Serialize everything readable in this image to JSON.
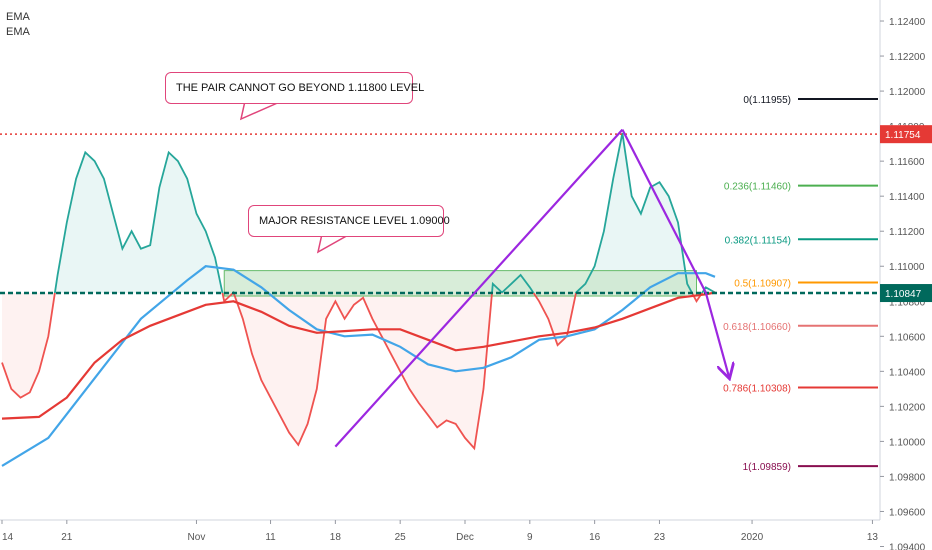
{
  "chart_data": {
    "type": "line",
    "title": "",
    "legend": [
      "EMA",
      "EMA"
    ],
    "x_ticks": [
      "14",
      "21",
      "Nov",
      "11",
      "18",
      "25",
      "Dec",
      "9",
      "16",
      "23",
      "2020",
      "13"
    ],
    "y_ticks": [
      "1.12400",
      "1.12200",
      "1.12000",
      "1.11800",
      "1.11600",
      "1.11400",
      "1.11200",
      "1.11000",
      "1.10800",
      "1.10600",
      "1.10400",
      "1.10200",
      "1.10000",
      "1.09800",
      "1.09600",
      "1.09400"
    ],
    "ylim": [
      1.0938,
      1.1252
    ],
    "baseline": 1.10847,
    "current_price_label": "1.10847",
    "resistance_level": 1.11754,
    "resistance_label": "1.11754",
    "resistance_zone": {
      "from": 1.1083,
      "to": 1.10975,
      "start_day": 24,
      "end_day": 75
    },
    "series": [
      {
        "key": "price",
        "color_up": "#26a69a",
        "color_down": "#ef5350",
        "points": [
          [
            0,
            1.1045
          ],
          [
            1,
            1.103
          ],
          [
            2,
            1.1025
          ],
          [
            3,
            1.1028
          ],
          [
            4,
            1.104
          ],
          [
            5,
            1.106
          ],
          [
            6,
            1.1095
          ],
          [
            7,
            1.1125
          ],
          [
            8,
            1.115
          ],
          [
            9,
            1.1165
          ],
          [
            10,
            1.116
          ],
          [
            11,
            1.115
          ],
          [
            12,
            1.113
          ],
          [
            13,
            1.111
          ],
          [
            14,
            1.112
          ],
          [
            15,
            1.111
          ],
          [
            16,
            1.1112
          ],
          [
            17,
            1.1145
          ],
          [
            18,
            1.1165
          ],
          [
            19,
            1.116
          ],
          [
            20,
            1.115
          ],
          [
            21,
            1.113
          ],
          [
            22,
            1.112
          ],
          [
            23,
            1.1105
          ],
          [
            24,
            1.108
          ],
          [
            25,
            1.1085
          ],
          [
            26,
            1.107
          ],
          [
            27,
            1.105
          ],
          [
            28,
            1.1035
          ],
          [
            29,
            1.1025
          ],
          [
            30,
            1.1015
          ],
          [
            31,
            1.1005
          ],
          [
            32,
            1.0998
          ],
          [
            33,
            1.101
          ],
          [
            34,
            1.103
          ],
          [
            35,
            1.107
          ],
          [
            36,
            1.108
          ],
          [
            37,
            1.107
          ],
          [
            38,
            1.1078
          ],
          [
            39,
            1.1082
          ],
          [
            40,
            1.107
          ],
          [
            41,
            1.106
          ],
          [
            42,
            1.105
          ],
          [
            43,
            1.104
          ],
          [
            44,
            1.103
          ],
          [
            45,
            1.1022
          ],
          [
            46,
            1.1015
          ],
          [
            47,
            1.1008
          ],
          [
            48,
            1.1012
          ],
          [
            49,
            1.101
          ],
          [
            50,
            1.1002
          ],
          [
            51,
            1.0996
          ],
          [
            52,
            1.103
          ],
          [
            53,
            1.109
          ],
          [
            54,
            1.1085
          ],
          [
            55,
            1.109
          ],
          [
            56,
            1.1095
          ],
          [
            57,
            1.1088
          ],
          [
            58,
            1.108
          ],
          [
            59,
            1.107
          ],
          [
            60,
            1.1055
          ],
          [
            61,
            1.106
          ],
          [
            62,
            1.1085
          ],
          [
            63,
            1.109
          ],
          [
            64,
            1.11
          ],
          [
            65,
            1.112
          ],
          [
            66,
            1.115
          ],
          [
            67,
            1.1176
          ],
          [
            68,
            1.114
          ],
          [
            69,
            1.113
          ],
          [
            70,
            1.1145
          ],
          [
            71,
            1.1148
          ],
          [
            72,
            1.114
          ],
          [
            73,
            1.1125
          ],
          [
            74,
            1.109
          ],
          [
            75,
            1.108
          ],
          [
            76,
            1.1088
          ],
          [
            77,
            1.1085
          ]
        ]
      },
      {
        "key": "ema_fast",
        "name": "EMA",
        "color": "#42a5e8",
        "points": [
          [
            0,
            1.0986
          ],
          [
            5,
            1.1002
          ],
          [
            10,
            1.1036
          ],
          [
            15,
            1.107
          ],
          [
            20,
            1.1092
          ],
          [
            22,
            1.11
          ],
          [
            25,
            1.1098
          ],
          [
            28,
            1.1088
          ],
          [
            31,
            1.1075
          ],
          [
            34,
            1.1064
          ],
          [
            37,
            1.106
          ],
          [
            40,
            1.1061
          ],
          [
            43,
            1.1054
          ],
          [
            46,
            1.1044
          ],
          [
            49,
            1.104
          ],
          [
            52,
            1.1042
          ],
          [
            55,
            1.1048
          ],
          [
            58,
            1.1058
          ],
          [
            61,
            1.106
          ],
          [
            64,
            1.1064
          ],
          [
            67,
            1.1075
          ],
          [
            70,
            1.1088
          ],
          [
            73,
            1.1096
          ],
          [
            76,
            1.1096
          ],
          [
            77,
            1.1094
          ]
        ]
      },
      {
        "key": "ema_slow",
        "name": "EMA",
        "color": "#e53935",
        "points": [
          [
            0,
            1.1013
          ],
          [
            4,
            1.1014
          ],
          [
            7,
            1.1025
          ],
          [
            10,
            1.1045
          ],
          [
            13,
            1.1058
          ],
          [
            16,
            1.1066
          ],
          [
            19,
            1.1072
          ],
          [
            22,
            1.1078
          ],
          [
            25,
            1.108
          ],
          [
            28,
            1.1074
          ],
          [
            31,
            1.1066
          ],
          [
            34,
            1.1062
          ],
          [
            37,
            1.1063
          ],
          [
            40,
            1.1064
          ],
          [
            43,
            1.1064
          ],
          [
            46,
            1.1058
          ],
          [
            49,
            1.1052
          ],
          [
            52,
            1.1054
          ],
          [
            55,
            1.1057
          ],
          [
            58,
            1.106
          ],
          [
            61,
            1.1062
          ],
          [
            64,
            1.1065
          ],
          [
            67,
            1.107
          ],
          [
            70,
            1.1076
          ],
          [
            73,
            1.1082
          ],
          [
            76,
            1.1084
          ],
          [
            77,
            1.1085
          ]
        ]
      }
    ],
    "fibonacci": [
      {
        "label": "0(1.11955)",
        "value": 1.11955,
        "color": "#131722"
      },
      {
        "label": "0.236(1.11460)",
        "value": 1.1146,
        "color": "#4caf50"
      },
      {
        "label": "0.382(1.11154)",
        "value": 1.11154,
        "color": "#089981"
      },
      {
        "label": "0.5(1.10907)",
        "value": 1.10907,
        "color": "#ff9800"
      },
      {
        "label": "0.618(1.10660)",
        "value": 1.1066,
        "color": "#e57373"
      },
      {
        "label": "0.786(1.10308)",
        "value": 1.10308,
        "color": "#e53935"
      },
      {
        "label": "1(1.09859)",
        "value": 1.09859,
        "color": "#880e4f"
      }
    ],
    "trendlines": [
      {
        "from": [
          36,
          1.0997
        ],
        "to": [
          67,
          1.1178
        ],
        "color": "#9c27e0"
      },
      {
        "from": [
          67,
          1.1178
        ],
        "to": [
          76,
          1.1085
        ],
        "color": "#9c27e0"
      },
      {
        "from": [
          76,
          1.1085
        ],
        "to": [
          78.5,
          1.1037
        ],
        "color": "#9c27e0",
        "arrow": true
      }
    ],
    "annotations": [
      {
        "text": "THE PAIR CANNOT GO BEYOND 1.11800 LEVEL"
      },
      {
        "text": "MAJOR RESISTANCE LEVEL 1.09000"
      }
    ],
    "colors": {
      "resistance": "#e53935",
      "current_price": "#00695c",
      "zone_fill": "#c8e6c9",
      "zone_border": "#66bb6a",
      "callout_border": "#e0457b"
    }
  }
}
